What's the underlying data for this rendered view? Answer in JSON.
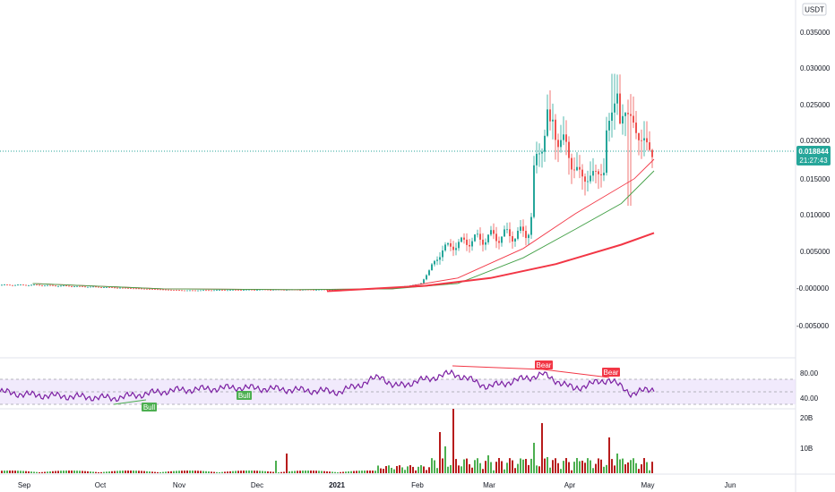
{
  "chart_data": {
    "type": "candlestick",
    "currency": "USDT",
    "price_axis": {
      "ticks": [
        "0.035000",
        "0.030000",
        "0.025000",
        "0.020000",
        "0.015000",
        "0.010000",
        "0.005000",
        "-0.000000",
        "-0.005000"
      ],
      "range": [
        -0.0075,
        0.038
      ]
    },
    "x_axis_labels": [
      "Sep",
      "Oct",
      "Nov",
      "Dec",
      "2021",
      "Feb",
      "Mar",
      "Apr",
      "May",
      "Jun"
    ],
    "last_price": {
      "value": "0.018844",
      "countdown": "21:27:43",
      "numeric": 0.018844
    },
    "price_series": [
      {
        "date": "2020-09-01",
        "close": 0.0013
      },
      {
        "date": "2020-10-01",
        "close": 0.001
      },
      {
        "date": "2020-11-01",
        "close": 0.0006
      },
      {
        "date": "2020-12-01",
        "close": 0.0007
      },
      {
        "date": "2021-01-01",
        "close": 0.0007
      },
      {
        "date": "2021-01-20",
        "close": 0.0009
      },
      {
        "date": "2021-02-01",
        "close": 0.0014
      },
      {
        "date": "2021-02-10",
        "close": 0.006
      },
      {
        "date": "2021-02-20",
        "close": 0.007
      },
      {
        "date": "2021-03-01",
        "close": 0.0075
      },
      {
        "date": "2021-03-15",
        "close": 0.008
      },
      {
        "date": "2021-03-25",
        "close": 0.022
      },
      {
        "date": "2021-04-05",
        "close": 0.015
      },
      {
        "date": "2021-04-15",
        "close": 0.016
      },
      {
        "date": "2021-04-22",
        "close": 0.024
      },
      {
        "date": "2021-05-01",
        "close": 0.0188
      }
    ],
    "moving_averages": [
      {
        "color": "#f23645",
        "points": [
          [
            0.05,
            0.0015
          ],
          [
            0.25,
            0.0008
          ],
          [
            0.45,
            0.0007
          ],
          [
            0.6,
            0.0008
          ],
          [
            0.7,
            0.0022
          ],
          [
            0.8,
            0.006
          ],
          [
            0.88,
            0.0105
          ],
          [
            0.97,
            0.015
          ],
          [
            1.0,
            0.0175
          ]
        ]
      },
      {
        "color": "#43a047",
        "points": [
          [
            0.05,
            0.0015
          ],
          [
            0.25,
            0.0008
          ],
          [
            0.45,
            0.0007
          ],
          [
            0.6,
            0.0008
          ],
          [
            0.7,
            0.0015
          ],
          [
            0.8,
            0.0048
          ],
          [
            0.88,
            0.0085
          ],
          [
            0.95,
            0.0118
          ],
          [
            1.0,
            0.016
          ]
        ]
      },
      {
        "color": "#f23645",
        "points": [
          [
            0.5,
            0.0005
          ],
          [
            0.65,
            0.0012
          ],
          [
            0.75,
            0.0022
          ],
          [
            0.85,
            0.004
          ],
          [
            0.95,
            0.0065
          ],
          [
            1.0,
            0.008
          ]
        ]
      }
    ],
    "rsi": {
      "levels": [
        "80.00",
        "40.00"
      ],
      "range": [
        20,
        100
      ],
      "band": [
        30,
        70
      ],
      "divergence_labels": [
        "Bull",
        "Bull",
        "Bear",
        "Bear"
      ]
    },
    "volume": {
      "ticks": [
        "20B",
        "10B"
      ]
    },
    "colors": {
      "up": "#26a69a",
      "down": "#ef5350",
      "rsi": "#7b1fa2",
      "rsi_band": "#e8dcfa",
      "vol_up": "#4caf50",
      "vol_down": "#b71c1c",
      "badge": "#26a69a"
    }
  }
}
